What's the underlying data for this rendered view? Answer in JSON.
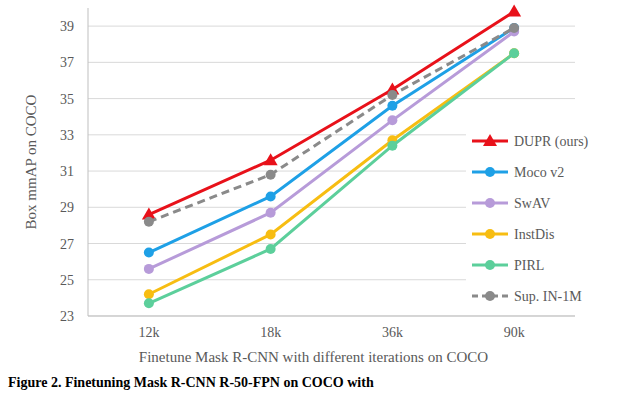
{
  "chart_data": {
    "type": "line",
    "y_label": "Box mmAP on COCO",
    "x_label": "Finetune Mask R-CNN with different iterations on COCO",
    "caption": "Figure 2. Finetuning Mask R-CNN R-50-FPN on COCO with",
    "categories": [
      "12k",
      "18k",
      "36k",
      "90k"
    ],
    "ylim": [
      23,
      40
    ],
    "yticks": [
      23,
      25,
      27,
      29,
      31,
      33,
      35,
      37,
      39
    ],
    "grid": true,
    "legend": "right",
    "series": [
      {
        "name": "DUPR (ours)",
        "color": "#e8111a",
        "marker": "triangle",
        "line_style": "solid",
        "values": [
          28.6,
          31.6,
          35.5,
          39.8
        ]
      },
      {
        "name": "Moco v2",
        "color": "#1ea0e6",
        "marker": "circle",
        "line_style": "solid",
        "values": [
          26.5,
          29.6,
          34.6,
          38.9
        ]
      },
      {
        "name": "SwAV",
        "color": "#b79bd9",
        "marker": "circle",
        "line_style": "solid",
        "values": [
          25.6,
          28.7,
          33.8,
          38.7
        ]
      },
      {
        "name": "InstDis",
        "color": "#f7bd12",
        "marker": "circle",
        "line_style": "solid",
        "values": [
          24.2,
          27.5,
          32.7,
          37.5
        ]
      },
      {
        "name": "PIRL",
        "color": "#5ccf9b",
        "marker": "circle",
        "line_style": "solid",
        "values": [
          23.7,
          26.7,
          32.4,
          37.5
        ]
      },
      {
        "name": "Sup. IN-1M",
        "color": "#8a8a8a",
        "marker": "circle",
        "line_style": "dashed",
        "values": [
          28.2,
          30.8,
          35.2,
          38.9
        ]
      }
    ]
  }
}
